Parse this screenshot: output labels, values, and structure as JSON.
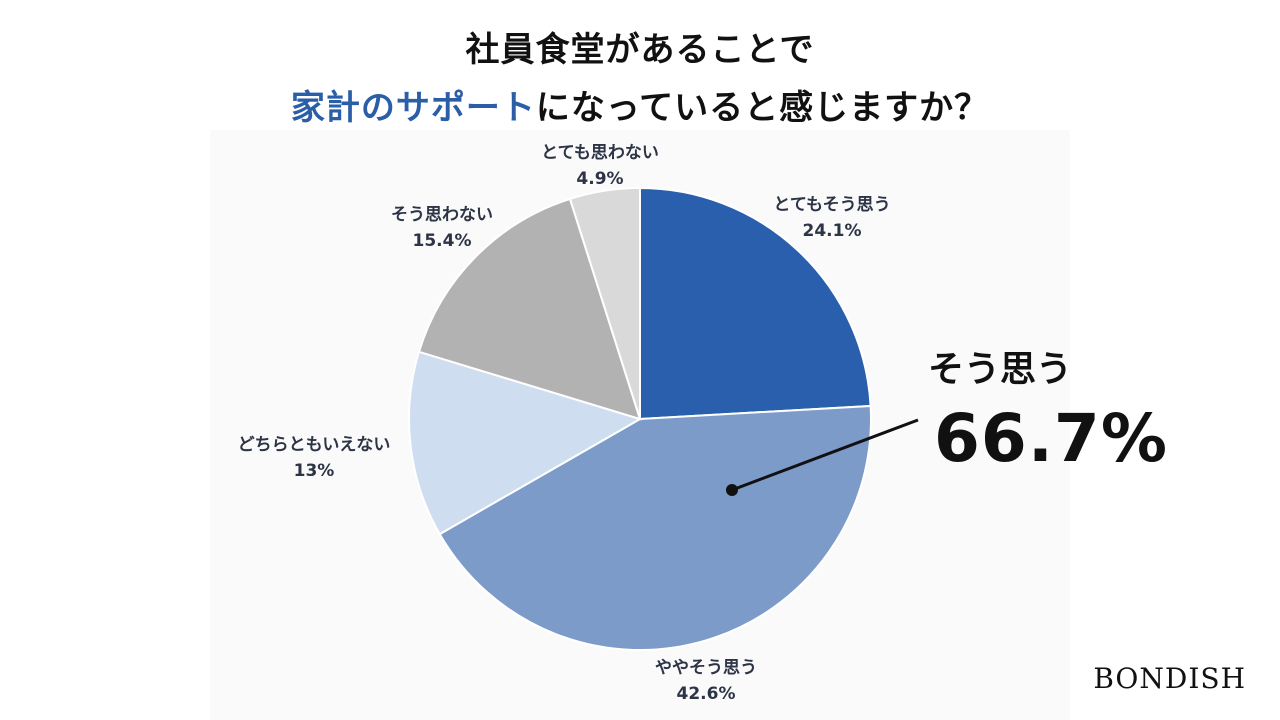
{
  "title": {
    "line1": "社員食堂があることで",
    "line2_highlight": "家計のサポート",
    "line2_rest": "になっていると感じますか？"
  },
  "chart_data": {
    "type": "pie",
    "slices": [
      {
        "label": "とてもそう思う",
        "value": 24.1,
        "value_text": "24.1%",
        "color": "#2a5fae"
      },
      {
        "label": "ややそう思う",
        "value": 42.6,
        "value_text": "42.6%",
        "color": "#7c9bc9"
      },
      {
        "label": "どちらともいえない",
        "value": 13.0,
        "value_text": "13%",
        "color": "#cfddf0"
      },
      {
        "label": "そう思わない",
        "value": 15.4,
        "value_text": "15.4%",
        "color": "#b2b2b2"
      },
      {
        "label": "とても思わない",
        "value": 4.9,
        "value_text": "4.9%",
        "color": "#d9d9d9"
      }
    ]
  },
  "callout": {
    "label": "そう思う",
    "value": "66.7%"
  },
  "brand": "BONDISH"
}
